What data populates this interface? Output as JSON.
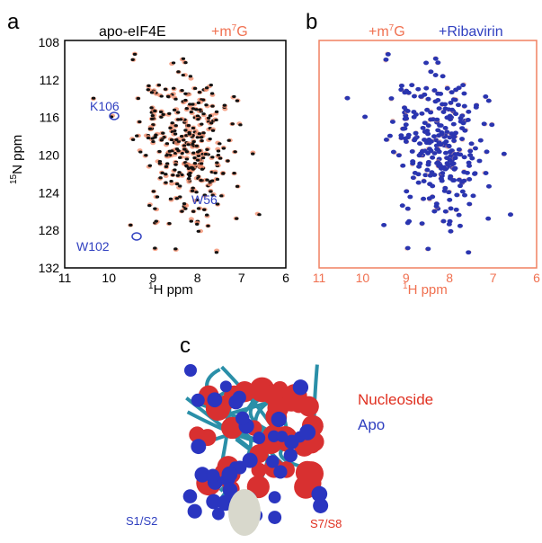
{
  "panel_a": {
    "label": "a",
    "series_1": "apo-eIF4E",
    "series_2": {
      "pre": "+m",
      "sup": "7",
      "post": "G"
    },
    "y_axis": {
      "sup": "15",
      "text": "N ppm",
      "ticks": [
        108,
        112,
        116,
        120,
        124,
        128,
        132
      ]
    },
    "x_axis": {
      "sup": "1",
      "text": "H ppm",
      "ticks": [
        11,
        10,
        9,
        8,
        7,
        6
      ]
    },
    "annotations": [
      "K106",
      "W56",
      "W102"
    ]
  },
  "panel_b": {
    "label": "b",
    "series_1": {
      "pre": "+m",
      "sup": "7",
      "post": "G"
    },
    "series_2": "+Ribavirin",
    "x_axis": {
      "sup": "1",
      "text": "H ppm",
      "ticks": [
        11,
        10,
        9,
        8,
        7,
        6
      ]
    }
  },
  "panel_c": {
    "label": "c",
    "legend": [
      "Nucleoside",
      "Apo"
    ],
    "sites": [
      "S1/S2",
      "S7/S8"
    ]
  }
}
